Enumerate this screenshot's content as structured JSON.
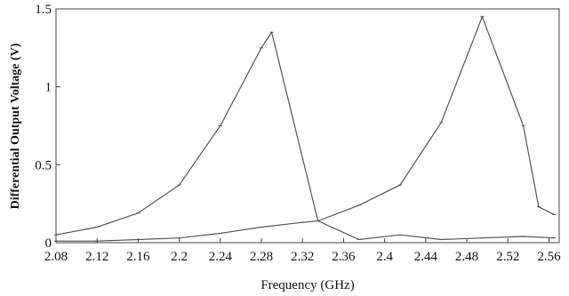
{
  "chart_data": {
    "type": "line",
    "xlabel": "Frequency (GHz)",
    "ylabel": "Differential Output Voltage (V)",
    "xlim": [
      2.08,
      2.57
    ],
    "ylim": [
      0,
      1.5
    ],
    "grid": false,
    "x_ticks": [
      "2.08",
      "2.12",
      "2.16",
      "2.2",
      "2.24",
      "2.28",
      "2.32",
      "2.36",
      "2.4",
      "2.44",
      "2.48",
      "2.52",
      "2.56"
    ],
    "y_ticks": [
      "0",
      "0.5",
      "1",
      "1.5"
    ],
    "series": [
      {
        "x": [
          2.08,
          2.12,
          2.16,
          2.2,
          2.24,
          2.28,
          2.29,
          2.335,
          2.375,
          2.415,
          2.455,
          2.495,
          2.535,
          2.565
        ],
        "y": [
          0.05,
          0.1,
          0.19,
          0.37,
          0.75,
          1.25,
          1.35,
          0.14,
          0.02,
          0.05,
          0.02,
          0.03,
          0.04,
          0.03
        ]
      },
      {
        "x": [
          2.08,
          2.12,
          2.16,
          2.2,
          2.24,
          2.28,
          2.32,
          2.335,
          2.375,
          2.415,
          2.455,
          2.495,
          2.535,
          2.55,
          2.565
        ],
        "y": [
          0.01,
          0.01,
          0.02,
          0.03,
          0.06,
          0.1,
          0.13,
          0.14,
          0.24,
          0.37,
          0.77,
          1.45,
          0.75,
          0.23,
          0.18
        ]
      }
    ]
  }
}
